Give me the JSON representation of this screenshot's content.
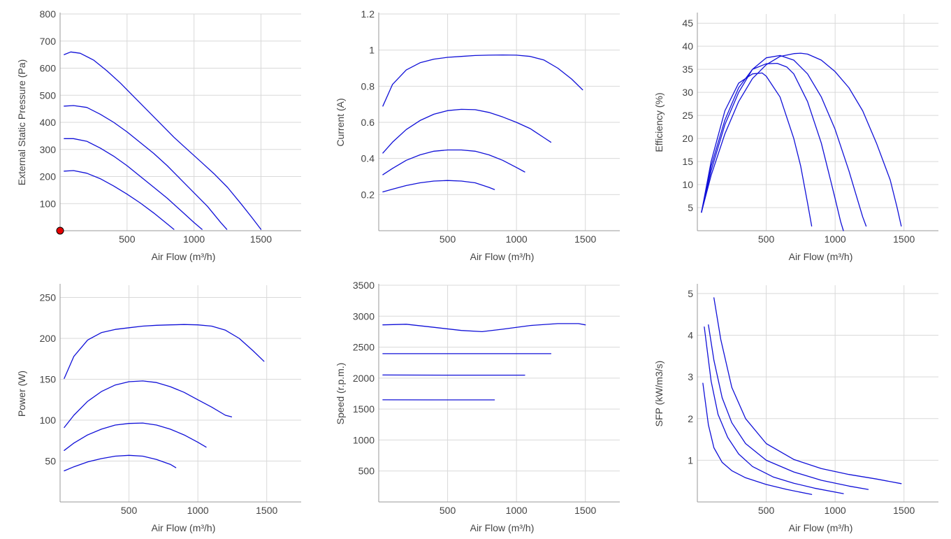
{
  "style": {
    "line_color": "#1010d8",
    "grid_color": "#d9d9d9",
    "axis_color": "#999999",
    "text_color": "#444444",
    "marker_color": "#e60000"
  },
  "chart_data": [
    {
      "type": "line",
      "xlabel": "Air Flow (m³/h)",
      "ylabel": "External Static Pressure (Pa)",
      "xlim": [
        0,
        1800
      ],
      "ylim": [
        0,
        800
      ],
      "xticks": [
        500,
        1000,
        1500
      ],
      "yticks": [
        100,
        200,
        300,
        400,
        500,
        600,
        700,
        800
      ],
      "grid": true,
      "marker": {
        "x": 0,
        "y": 0
      },
      "series": [
        {
          "x": [
            30,
            80,
            150,
            250,
            350,
            450,
            550,
            650,
            750,
            850,
            950,
            1050,
            1150,
            1250,
            1350,
            1430,
            1500
          ],
          "y": [
            650,
            660,
            655,
            630,
            590,
            545,
            495,
            445,
            395,
            345,
            300,
            255,
            210,
            160,
            100,
            50,
            5
          ]
        },
        {
          "x": [
            30,
            100,
            200,
            300,
            400,
            500,
            600,
            700,
            800,
            900,
            1000,
            1100,
            1200,
            1245
          ],
          "y": [
            460,
            462,
            455,
            430,
            400,
            365,
            325,
            285,
            240,
            190,
            140,
            90,
            30,
            5
          ]
        },
        {
          "x": [
            30,
            100,
            200,
            300,
            400,
            500,
            600,
            700,
            800,
            900,
            1000,
            1060
          ],
          "y": [
            340,
            340,
            330,
            305,
            275,
            240,
            200,
            160,
            120,
            75,
            30,
            5
          ]
        },
        {
          "x": [
            30,
            100,
            200,
            300,
            400,
            500,
            600,
            700,
            800,
            850
          ],
          "y": [
            220,
            222,
            212,
            192,
            165,
            135,
            102,
            65,
            25,
            5
          ]
        }
      ]
    },
    {
      "type": "line",
      "xlabel": "Air Flow (m³/h)",
      "ylabel": "Current (A)",
      "xlim": [
        0,
        1750
      ],
      "ylim": [
        0,
        1.2
      ],
      "xticks": [
        500,
        1000,
        1500
      ],
      "yticks": [
        0.2,
        0.4,
        0.6,
        0.8,
        1,
        1.2
      ],
      "ytick_labels": [
        "0.2",
        "0.4",
        "0.6",
        "0.8",
        "1",
        "1.2"
      ],
      "grid": true,
      "series": [
        {
          "x": [
            30,
            100,
            200,
            300,
            400,
            500,
            600,
            700,
            800,
            900,
            1000,
            1100,
            1200,
            1300,
            1400,
            1480
          ],
          "y": [
            0.69,
            0.81,
            0.89,
            0.93,
            0.95,
            0.96,
            0.965,
            0.97,
            0.972,
            0.973,
            0.972,
            0.965,
            0.945,
            0.9,
            0.84,
            0.78
          ]
        },
        {
          "x": [
            30,
            100,
            200,
            300,
            400,
            500,
            600,
            700,
            800,
            900,
            1000,
            1100,
            1200,
            1250
          ],
          "y": [
            0.43,
            0.49,
            0.56,
            0.61,
            0.645,
            0.665,
            0.672,
            0.67,
            0.655,
            0.63,
            0.6,
            0.565,
            0.515,
            0.49
          ]
        },
        {
          "x": [
            30,
            100,
            200,
            300,
            400,
            500,
            600,
            700,
            800,
            900,
            1000,
            1060
          ],
          "y": [
            0.31,
            0.345,
            0.39,
            0.42,
            0.44,
            0.447,
            0.447,
            0.44,
            0.42,
            0.39,
            0.35,
            0.325
          ]
        },
        {
          "x": [
            30,
            100,
            200,
            300,
            400,
            500,
            600,
            700,
            800,
            840
          ],
          "y": [
            0.215,
            0.23,
            0.25,
            0.265,
            0.275,
            0.278,
            0.275,
            0.265,
            0.24,
            0.228
          ]
        }
      ]
    },
    {
      "type": "line",
      "xlabel": "Air Flow (m³/h)",
      "ylabel": "Efficiency (%)",
      "xlim": [
        0,
        1750
      ],
      "ylim": [
        0,
        47
      ],
      "xticks": [
        500,
        1000,
        1500
      ],
      "yticks": [
        5,
        10,
        15,
        20,
        25,
        30,
        35,
        40,
        45
      ],
      "grid": true,
      "series": [
        {
          "x": [
            30,
            100,
            200,
            300,
            400,
            500,
            600,
            700,
            750,
            800,
            900,
            1000,
            1100,
            1200,
            1300,
            1400,
            1450,
            1480
          ],
          "y": [
            4,
            12,
            21,
            28,
            33,
            36,
            37.8,
            38.4,
            38.5,
            38.3,
            37,
            34.5,
            31,
            26,
            19,
            11,
            5,
            1
          ]
        },
        {
          "x": [
            30,
            100,
            200,
            300,
            400,
            500,
            600,
            700,
            800,
            900,
            1000,
            1100,
            1150,
            1200,
            1225
          ],
          "y": [
            4,
            13,
            23,
            30,
            35,
            37.5,
            38,
            37,
            34,
            29,
            22,
            13,
            8,
            3,
            1
          ]
        },
        {
          "x": [
            30,
            100,
            200,
            300,
            400,
            500,
            580,
            650,
            700,
            800,
            900,
            950,
            1000,
            1040,
            1060
          ],
          "y": [
            4,
            14,
            24,
            31,
            35,
            36.2,
            36.3,
            35.5,
            34,
            28,
            19,
            13,
            7,
            2,
            0
          ]
        },
        {
          "x": [
            30,
            100,
            200,
            300,
            400,
            470,
            500,
            600,
            700,
            750,
            800,
            830
          ],
          "y": [
            4,
            15,
            26,
            32,
            34,
            34.2,
            33.5,
            29,
            20,
            14,
            6,
            1
          ]
        }
      ]
    },
    {
      "type": "line",
      "xlabel": "Air Flow (m³/h)",
      "ylabel": "Power (W)",
      "xlim": [
        0,
        1750
      ],
      "ylim": [
        0,
        265
      ],
      "xticks": [
        500,
        1000,
        1500
      ],
      "yticks": [
        50,
        100,
        150,
        200,
        250
      ],
      "grid": true,
      "series": [
        {
          "x": [
            30,
            100,
            200,
            300,
            400,
            500,
            600,
            700,
            800,
            900,
            1000,
            1100,
            1200,
            1300,
            1400,
            1480
          ],
          "y": [
            151,
            178,
            198,
            207,
            211,
            213,
            215,
            216,
            216.5,
            217,
            216.5,
            215,
            210,
            200,
            185,
            172
          ]
        },
        {
          "x": [
            30,
            100,
            200,
            300,
            400,
            500,
            600,
            700,
            800,
            900,
            1000,
            1100,
            1200,
            1245
          ],
          "y": [
            91,
            106,
            123,
            135,
            143,
            147,
            148,
            146,
            141,
            134,
            125,
            116,
            106,
            104
          ]
        },
        {
          "x": [
            30,
            100,
            200,
            300,
            400,
            500,
            600,
            700,
            800,
            900,
            1000,
            1060
          ],
          "y": [
            63,
            72,
            82,
            89,
            94,
            96,
            96.5,
            94,
            89,
            82,
            73,
            67
          ]
        },
        {
          "x": [
            30,
            100,
            200,
            300,
            400,
            500,
            600,
            700,
            800,
            840
          ],
          "y": [
            38,
            43,
            49,
            53,
            56,
            57,
            56,
            52,
            46,
            42
          ]
        }
      ]
    },
    {
      "type": "line",
      "xlabel": "Air Flow (m³/h)",
      "ylabel": "Speed (r.p.m.)",
      "xlim": [
        0,
        1750
      ],
      "ylim": [
        0,
        3500
      ],
      "xticks": [
        500,
        1000,
        1500
      ],
      "yticks": [
        500,
        1000,
        1500,
        2000,
        2500,
        3000,
        3500
      ],
      "grid": true,
      "series": [
        {
          "x": [
            30,
            200,
            400,
            600,
            750,
            900,
            1100,
            1300,
            1450,
            1500
          ],
          "y": [
            2860,
            2870,
            2820,
            2770,
            2750,
            2790,
            2850,
            2880,
            2880,
            2860
          ]
        },
        {
          "x": [
            30,
            500,
            1000,
            1250
          ],
          "y": [
            2395,
            2395,
            2395,
            2395
          ]
        },
        {
          "x": [
            30,
            500,
            1000,
            1060
          ],
          "y": [
            2050,
            2048,
            2048,
            2048
          ]
        },
        {
          "x": [
            30,
            400,
            840
          ],
          "y": [
            1650,
            1648,
            1648
          ]
        }
      ]
    },
    {
      "type": "line",
      "xlabel": "Air Flow (m³/h)",
      "ylabel": "SFP (kW/m3/s)",
      "xlim": [
        0,
        1750
      ],
      "ylim": [
        0,
        5.2
      ],
      "xticks": [
        500,
        1000,
        1500
      ],
      "yticks": [
        1,
        2,
        3,
        4,
        5
      ],
      "grid": true,
      "series": [
        {
          "x": [
            120,
            170,
            250,
            350,
            500,
            700,
            900,
            1100,
            1300,
            1480
          ],
          "y": [
            4.9,
            3.9,
            2.75,
            2.0,
            1.4,
            1.02,
            0.8,
            0.66,
            0.55,
            0.44
          ]
        },
        {
          "x": [
            80,
            120,
            180,
            250,
            350,
            500,
            700,
            900,
            1100,
            1240
          ],
          "y": [
            4.25,
            3.4,
            2.5,
            1.9,
            1.4,
            1.0,
            0.72,
            0.52,
            0.38,
            0.3
          ]
        },
        {
          "x": [
            50,
            100,
            150,
            220,
            300,
            400,
            550,
            700,
            850,
            1060
          ],
          "y": [
            4.2,
            2.9,
            2.1,
            1.55,
            1.15,
            0.85,
            0.6,
            0.45,
            0.33,
            0.2
          ]
        },
        {
          "x": [
            40,
            80,
            120,
            180,
            250,
            350,
            500,
            650,
            830
          ],
          "y": [
            2.85,
            1.85,
            1.3,
            0.95,
            0.75,
            0.58,
            0.42,
            0.3,
            0.18
          ]
        }
      ]
    }
  ]
}
